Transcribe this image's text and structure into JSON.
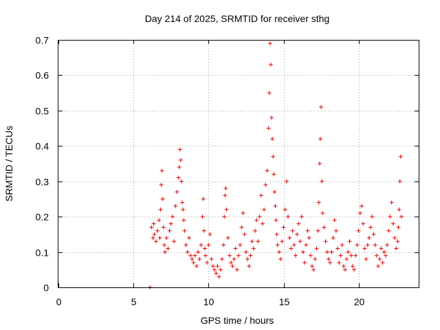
{
  "chart_data": {
    "type": "scatter",
    "title": "Day 214 of 2025, SRMTID for receiver sthg",
    "xlabel": "GPS time / hours",
    "ylabel": "SRMTID / TECUs",
    "xlim": [
      0,
      24
    ],
    "ylim": [
      0,
      0.7
    ],
    "xticks": [
      0,
      5,
      10,
      15,
      20
    ],
    "yticks": [
      0,
      0.1,
      0.2,
      0.3,
      0.4,
      0.5,
      0.6,
      0.7
    ],
    "xtick_labels": [
      "0",
      "5",
      "10",
      "15",
      "20"
    ],
    "ytick_labels": [
      "0",
      "0.1",
      "0.2",
      "0.3",
      "0.4",
      "0.5",
      "0.6",
      "0.7"
    ],
    "grid": true,
    "marker": "+",
    "color": "#e00000",
    "series": [
      {
        "name": "SRMTID",
        "x": [
          6.1,
          6.2,
          6.3,
          6.35,
          6.4,
          6.5,
          6.6,
          6.7,
          6.75,
          6.8,
          6.85,
          6.9,
          6.95,
          7.0,
          7.05,
          7.1,
          7.2,
          7.3,
          7.4,
          7.5,
          7.6,
          7.7,
          7.8,
          7.9,
          8.0,
          8.05,
          8.1,
          8.15,
          8.2,
          8.25,
          8.3,
          8.35,
          8.4,
          8.5,
          8.6,
          8.7,
          8.8,
          8.9,
          9.0,
          9.1,
          9.2,
          9.3,
          9.4,
          9.5,
          9.6,
          9.65,
          9.7,
          9.75,
          9.8,
          9.9,
          10.0,
          10.1,
          10.2,
          10.3,
          10.4,
          10.5,
          10.6,
          10.7,
          10.8,
          10.9,
          11.0,
          11.05,
          11.1,
          11.15,
          11.2,
          11.3,
          11.4,
          11.5,
          11.6,
          11.7,
          11.8,
          11.9,
          12.0,
          12.1,
          12.2,
          12.3,
          12.4,
          12.5,
          12.6,
          12.7,
          12.8,
          12.9,
          13.0,
          13.1,
          13.2,
          13.3,
          13.4,
          13.5,
          13.6,
          13.7,
          13.8,
          13.9,
          14.0,
          14.05,
          14.1,
          14.15,
          14.2,
          14.25,
          14.3,
          14.35,
          14.4,
          14.45,
          14.5,
          14.55,
          14.6,
          14.7,
          14.8,
          14.9,
          15.0,
          15.1,
          15.2,
          15.3,
          15.4,
          15.5,
          15.6,
          15.7,
          15.8,
          15.9,
          16.0,
          16.1,
          16.2,
          16.3,
          16.4,
          16.5,
          16.6,
          16.7,
          16.8,
          16.9,
          17.0,
          17.1,
          17.2,
          17.3,
          17.35,
          17.4,
          17.45,
          17.5,
          17.55,
          17.6,
          17.7,
          17.8,
          17.9,
          18.0,
          18.1,
          18.2,
          18.3,
          18.4,
          18.5,
          18.6,
          18.7,
          18.8,
          18.9,
          19.0,
          19.1,
          19.2,
          19.3,
          19.4,
          19.5,
          19.6,
          19.7,
          19.8,
          19.9,
          20.0,
          20.1,
          20.2,
          20.3,
          20.4,
          20.5,
          20.6,
          20.7,
          20.8,
          20.9,
          21.0,
          21.1,
          21.2,
          21.3,
          21.4,
          21.5,
          21.6,
          21.7,
          21.8,
          21.9,
          22.0,
          22.1,
          22.2,
          22.3,
          22.4,
          22.5,
          22.6,
          22.65,
          22.7,
          22.75,
          22.8,
          22.85
        ],
        "y": [
          0.0,
          0.17,
          0.14,
          0.18,
          0.15,
          0.13,
          0.16,
          0.19,
          0.14,
          0.22,
          0.29,
          0.33,
          0.25,
          0.17,
          0.12,
          0.1,
          0.14,
          0.11,
          0.16,
          0.18,
          0.2,
          0.13,
          0.23,
          0.27,
          0.31,
          0.34,
          0.39,
          0.36,
          0.3,
          0.24,
          0.22,
          0.19,
          0.16,
          0.12,
          0.1,
          0.14,
          0.09,
          0.08,
          0.07,
          0.09,
          0.06,
          0.1,
          0.08,
          0.12,
          0.2,
          0.25,
          0.16,
          0.11,
          0.09,
          0.07,
          0.12,
          0.15,
          0.08,
          0.06,
          0.05,
          0.04,
          0.06,
          0.03,
          0.05,
          0.08,
          0.12,
          0.2,
          0.26,
          0.28,
          0.22,
          0.14,
          0.09,
          0.07,
          0.06,
          0.08,
          0.11,
          0.05,
          0.09,
          0.12,
          0.17,
          0.21,
          0.15,
          0.1,
          0.08,
          0.06,
          0.09,
          0.13,
          0.11,
          0.16,
          0.19,
          0.13,
          0.2,
          0.26,
          0.18,
          0.22,
          0.29,
          0.33,
          0.45,
          0.55,
          0.69,
          0.63,
          0.48,
          0.42,
          0.37,
          0.32,
          0.27,
          0.23,
          0.19,
          0.15,
          0.12,
          0.1,
          0.08,
          0.13,
          0.17,
          0.22,
          0.3,
          0.2,
          0.14,
          0.11,
          0.16,
          0.12,
          0.09,
          0.15,
          0.18,
          0.13,
          0.2,
          0.1,
          0.07,
          0.12,
          0.16,
          0.14,
          0.09,
          0.06,
          0.05,
          0.08,
          0.11,
          0.16,
          0.24,
          0.35,
          0.42,
          0.51,
          0.3,
          0.21,
          0.17,
          0.13,
          0.1,
          0.08,
          0.07,
          0.1,
          0.14,
          0.19,
          0.16,
          0.11,
          0.07,
          0.09,
          0.12,
          0.06,
          0.05,
          0.08,
          0.1,
          0.13,
          0.09,
          0.06,
          0.05,
          0.09,
          0.12,
          0.16,
          0.21,
          0.23,
          0.18,
          0.11,
          0.08,
          0.12,
          0.14,
          0.17,
          0.2,
          0.15,
          0.12,
          0.09,
          0.06,
          0.08,
          0.11,
          0.07,
          0.1,
          0.09,
          0.12,
          0.16,
          0.2,
          0.24,
          0.18,
          0.14,
          0.11,
          0.13,
          0.17,
          0.22,
          0.3,
          0.37,
          0.2
        ]
      }
    ]
  }
}
